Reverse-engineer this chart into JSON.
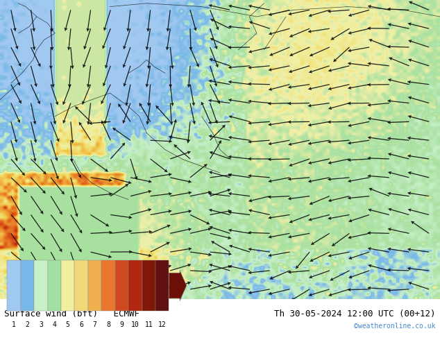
{
  "title_left": "Surface wind (bft)   ECMWF",
  "title_right": "Th 30-05-2024 12:00 UTC (00+12)",
  "credit": "©weatheronline.co.uk",
  "colorbar_levels": [
    1,
    2,
    3,
    4,
    5,
    6,
    7,
    8,
    9,
    10,
    11,
    12
  ],
  "colorbar_colors": [
    "#a0c8f0",
    "#78b8e8",
    "#c8f0c8",
    "#a0e0a0",
    "#f0f0a0",
    "#f0d878",
    "#f0b050",
    "#e87830",
    "#d04820",
    "#b02810",
    "#801808",
    "#601010"
  ],
  "bg_color": "#ffffff",
  "map_bg": "#e8e8e8",
  "fig_width": 6.34,
  "fig_height": 4.9,
  "dpi": 100
}
